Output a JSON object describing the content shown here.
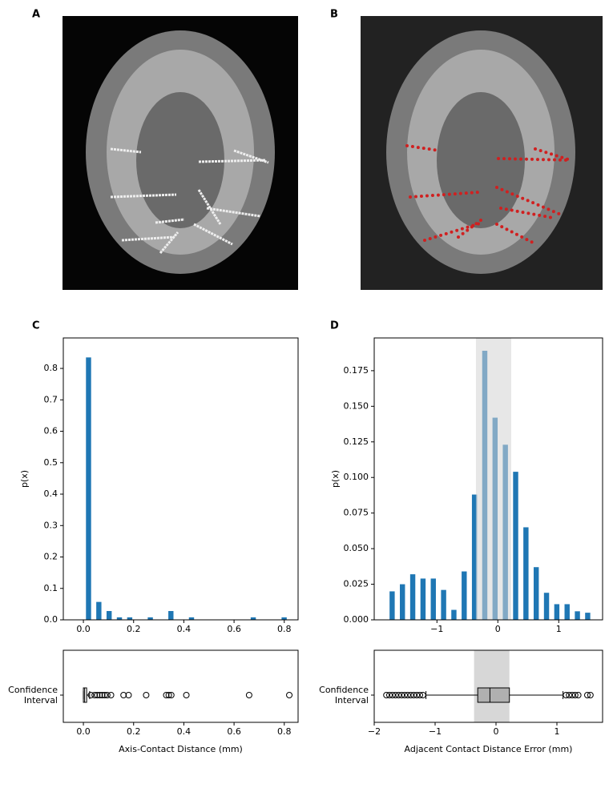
{
  "figure": {
    "panel_labels": [
      "A",
      "B",
      "C",
      "D"
    ]
  },
  "chart_data": [
    {
      "type": "histogram",
      "ylabel": "p(x)",
      "color": "#1f77b4",
      "bins": [
        0,
        0.041,
        0.082,
        0.123,
        0.164,
        0.205,
        0.246,
        0.287,
        0.328,
        0.369,
        0.41,
        0.451,
        0.492,
        0.533,
        0.574,
        0.615,
        0.656,
        0.697,
        0.738,
        0.779,
        0.82
      ],
      "values": [
        0.835,
        0.057,
        0.028,
        0.008,
        0.008,
        0,
        0.008,
        0,
        0.028,
        0,
        0.008,
        0,
        0,
        0,
        0,
        0,
        0.008,
        0,
        0,
        0.008
      ],
      "xlim": [
        -0.08,
        0.855
      ],
      "xticks": [
        {
          "value": 0,
          "label": "0.0"
        },
        0.2,
        0.4,
        0.6,
        0.8
      ],
      "ylim": [
        0,
        0.897
      ],
      "yticks": [
        {
          "value": 0,
          "label": "0.0"
        },
        0.1,
        0.2,
        0.3,
        0.4,
        0.5,
        0.6,
        0.7,
        0.8
      ]
    },
    {
      "type": "histogram",
      "ylabel": "p(x)",
      "color": "#1f77b4",
      "shaded_span": [
        -0.36,
        0.22
      ],
      "shade_color": "#d3d3d3",
      "bins": [
        -1.82,
        -1.651,
        -1.482,
        -1.313,
        -1.144,
        -0.975,
        -0.806,
        -0.637,
        -0.468,
        -0.299,
        -0.13,
        0.039,
        0.208,
        0.377,
        0.546,
        0.715,
        0.884,
        1.053,
        1.222,
        1.391,
        1.56
      ],
      "values": [
        0.02,
        0.025,
        0.032,
        0.029,
        0.029,
        0.021,
        0.007,
        0.034,
        0.088,
        0.189,
        0.142,
        0.123,
        0.104,
        0.065,
        0.037,
        0.019,
        0.011,
        0.011,
        0.006,
        0.005
      ],
      "xlim": [
        -2.03,
        1.72
      ],
      "xticks": [
        {
          "value": -1,
          "label": "−1"
        },
        0,
        1
      ],
      "ylim": [
        0,
        0.198
      ],
      "yticks": [
        {
          "value": 0,
          "label": "0.000"
        },
        0.025,
        {
          "value": 0.05,
          "label": "0.050"
        },
        0.075,
        {
          "value": 0.1,
          "label": "0.100"
        },
        0.125,
        {
          "value": 0.15,
          "label": "0.150"
        },
        0.175
      ]
    },
    {
      "type": "box",
      "category_lines": [
        "Confidence",
        "Interval"
      ],
      "xlabel": "Axis-Contact Distance (mm)",
      "whislo": 0,
      "q1": 0,
      "med": 0.005,
      "q3": 0.013,
      "whishi": 0.025,
      "fliers": [
        0.03,
        0.045,
        0.055,
        0.065,
        0.075,
        0.085,
        0.095,
        0.11,
        0.16,
        0.18,
        0.25,
        0.33,
        0.34,
        0.35,
        0.41,
        0.66,
        0.82
      ],
      "xlim": [
        -0.08,
        0.855
      ],
      "xticks": [
        {
          "value": 0,
          "label": "0.0"
        },
        0.2,
        0.4,
        0.6,
        0.8
      ]
    },
    {
      "type": "box",
      "category_lines": [
        "Confidence",
        "Interval"
      ],
      "xlabel": "Adjacent Contact Distance Error (mm)",
      "shaded_span": [
        -0.36,
        0.22
      ],
      "shade_color": "#d3d3d3",
      "box_color": "#b0b0b0",
      "whislo": -1.15,
      "q1": -0.3,
      "med": -0.1,
      "q3": 0.22,
      "whishi": 1.1,
      "fliers": [
        -1.8,
        -1.75,
        -1.7,
        -1.65,
        -1.6,
        -1.55,
        -1.5,
        -1.45,
        -1.4,
        -1.35,
        -1.3,
        -1.25,
        -1.2,
        1.15,
        1.2,
        1.25,
        1.3,
        1.35,
        1.5,
        1.55
      ],
      "xlim": [
        -2.0,
        1.75
      ],
      "xticks": [
        {
          "value": -2,
          "label": "−2"
        },
        {
          "value": -1,
          "label": "−1"
        },
        0,
        1
      ]
    }
  ]
}
